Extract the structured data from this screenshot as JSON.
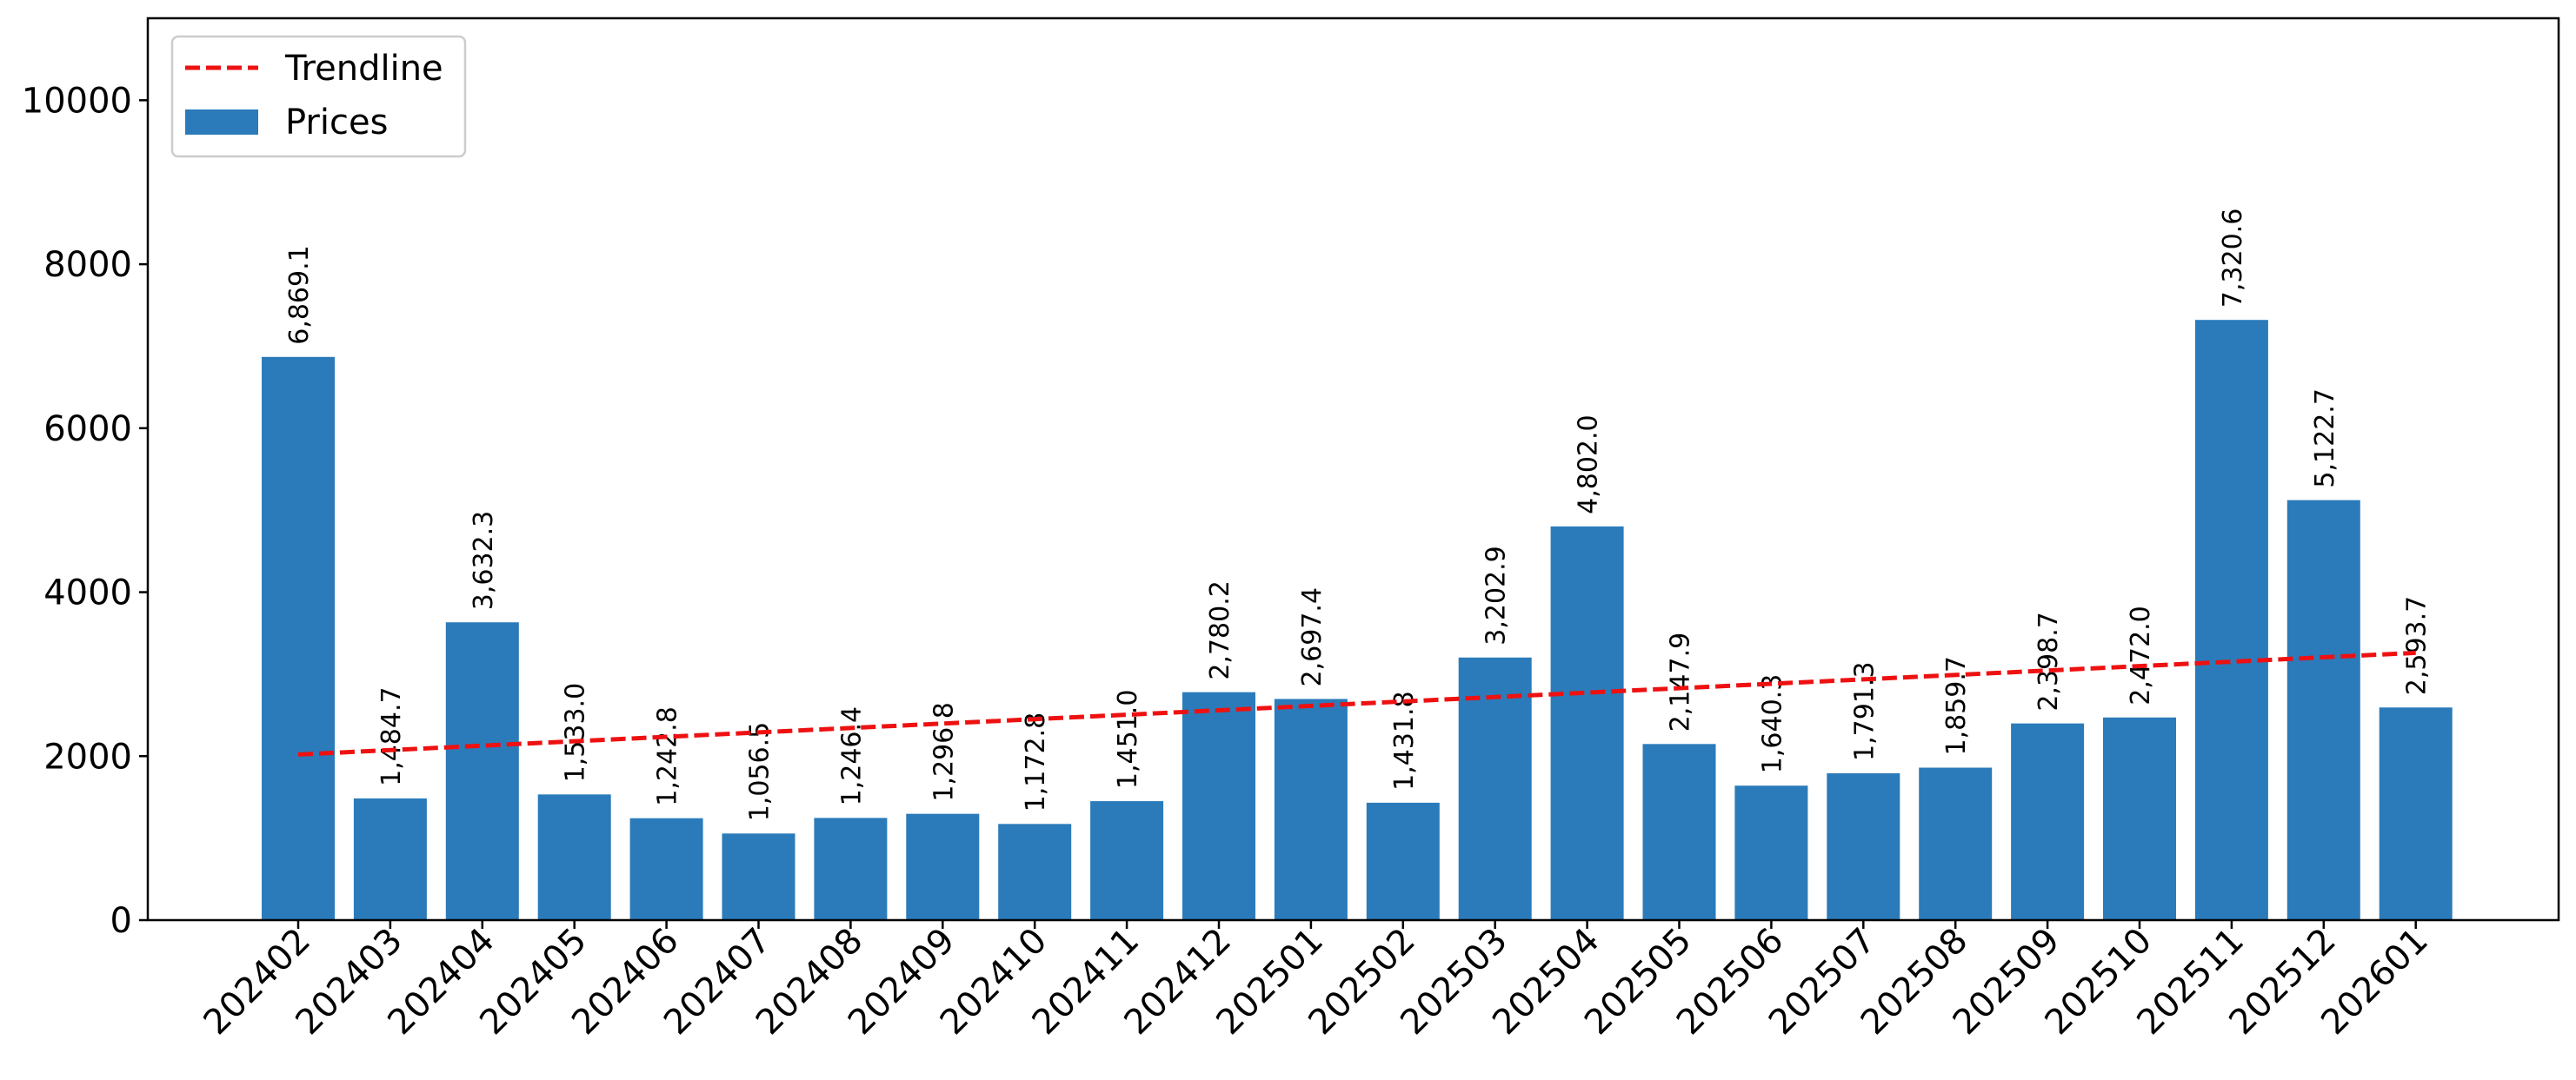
{
  "chart_data": {
    "type": "bar",
    "categories": [
      "202402",
      "202403",
      "202404",
      "202405",
      "202406",
      "202407",
      "202408",
      "202409",
      "202410",
      "202411",
      "202412",
      "202501",
      "202502",
      "202503",
      "202504",
      "202505",
      "202506",
      "202507",
      "202508",
      "202509",
      "202510",
      "202511",
      "202512",
      "202601"
    ],
    "series": [
      {
        "name": "Prices",
        "values": [
          6869.1,
          1484.7,
          3632.3,
          1533.0,
          1242.8,
          1056.5,
          1246.4,
          1296.8,
          1172.8,
          1451.0,
          2780.2,
          2697.4,
          1431.8,
          3202.9,
          4802.0,
          2147.9,
          1640.3,
          1791.3,
          1859.7,
          2398.7,
          2472.0,
          7320.6,
          5122.7,
          2593.7
        ],
        "value_labels": [
          "6,869.1",
          "1,484.7",
          "3,632.3",
          "1,533.0",
          "1,242.8",
          "1,056.5",
          "1,246.4",
          "1,296.8",
          "1,172.8",
          "1,451.0",
          "2,780.2",
          "2,697.4",
          "1,431.8",
          "3,202.9",
          "4,802.0",
          "2,147.9",
          "1,640.3",
          "1,791.3",
          "1,859.7",
          "2,398.7",
          "2,472.0",
          "7,320.6",
          "5,122.7",
          "2,593.7"
        ],
        "color": "#2b7bba"
      }
    ],
    "trendline": {
      "name": "Trendline",
      "start": 2020,
      "end": 3260,
      "color": "#ee1111",
      "style": "dashed"
    },
    "ylim": [
      0,
      11000
    ],
    "yticks": [
      0,
      2000,
      4000,
      6000,
      8000,
      10000
    ],
    "title": "",
    "xlabel": "",
    "ylabel": "",
    "legend": {
      "placement": "top-left",
      "items": [
        "Trendline",
        "Prices"
      ]
    },
    "grid": false
  }
}
